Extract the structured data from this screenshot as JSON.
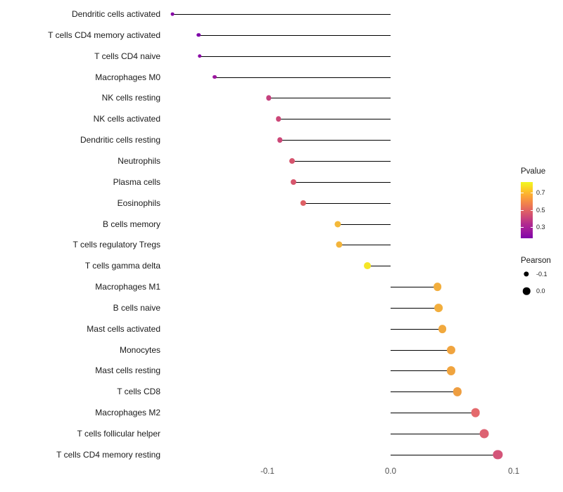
{
  "chart_data": {
    "type": "lollipop",
    "title": "",
    "xlabel": "",
    "ylabel": "",
    "x_ticks": [
      "-0.1",
      "0.0",
      "0.1"
    ],
    "x_tick_values": [
      -0.1,
      0,
      0.1
    ],
    "xlim": [
      -0.19,
      0.12
    ],
    "grid": false,
    "legend_position": "right",
    "points": [
      {
        "label": "Dendritic cells activated",
        "pearson": -0.177,
        "pvalue": 0.25,
        "color": "#8606a6"
      },
      {
        "label": "T cells CD4 memory activated",
        "pearson": -0.156,
        "pvalue": 0.24,
        "color": "#7e03a8"
      },
      {
        "label": "T cells CD4 naive",
        "pearson": -0.155,
        "pvalue": 0.25,
        "color": "#8a09a5"
      },
      {
        "label": "Macrophages M0",
        "pearson": -0.143,
        "pvalue": 0.28,
        "color": "#9c179e"
      },
      {
        "label": "NK cells resting",
        "pearson": -0.099,
        "pvalue": 0.44,
        "color": "#c5407e"
      },
      {
        "label": "NK cells activated",
        "pearson": -0.091,
        "pvalue": 0.46,
        "color": "#cc4778"
      },
      {
        "label": "Dendritic cells resting",
        "pearson": -0.09,
        "pvalue": 0.46,
        "color": "#cc4778"
      },
      {
        "label": "Neutrophils",
        "pearson": -0.08,
        "pvalue": 0.49,
        "color": "#d6556e"
      },
      {
        "label": "Plasma cells",
        "pearson": -0.079,
        "pvalue": 0.49,
        "color": "#d7566d"
      },
      {
        "label": "Eosinophils",
        "pearson": -0.071,
        "pvalue": 0.51,
        "color": "#de6065"
      },
      {
        "label": "B cells memory",
        "pearson": -0.043,
        "pvalue": 0.66,
        "color": "#f4b93a"
      },
      {
        "label": "T cells regulatory Tregs",
        "pearson": -0.042,
        "pvalue": 0.65,
        "color": "#f3b43b"
      },
      {
        "label": "T cells gamma delta",
        "pearson": -0.019,
        "pvalue": 0.78,
        "color": "#f5e626"
      },
      {
        "label": "Macrophages M1",
        "pearson": 0.038,
        "pvalue": 0.64,
        "color": "#f2ae3d"
      },
      {
        "label": "B cells naive",
        "pearson": 0.039,
        "pvalue": 0.64,
        "color": "#f2ae3d"
      },
      {
        "label": "Mast cells activated",
        "pearson": 0.042,
        "pvalue": 0.63,
        "color": "#f1a93e"
      },
      {
        "label": "Monocytes",
        "pearson": 0.049,
        "pvalue": 0.62,
        "color": "#f0a43f"
      },
      {
        "label": "Mast cells resting",
        "pearson": 0.049,
        "pvalue": 0.62,
        "color": "#f0a43f"
      },
      {
        "label": "T cells CD8",
        "pearson": 0.054,
        "pvalue": 0.6,
        "color": "#ee9e41"
      },
      {
        "label": "Macrophages M2",
        "pearson": 0.069,
        "pvalue": 0.52,
        "color": "#e4696c"
      },
      {
        "label": "T cells follicular helper",
        "pearson": 0.076,
        "pvalue": 0.5,
        "color": "#dd6272"
      },
      {
        "label": "T cells CD4 memory resting",
        "pearson": 0.087,
        "pvalue": 0.47,
        "color": "#d45579"
      }
    ],
    "legend": {
      "pvalue": {
        "title": "Pvalue",
        "ticks": [
          "0.7",
          "0.5",
          "0.3"
        ],
        "gradient_top_to_bottom": [
          "#f0f921",
          "#fcce25",
          "#fca636",
          "#f2844b",
          "#e16462",
          "#cc4778",
          "#b12a90",
          "#9c179e",
          "#7e03a8"
        ]
      },
      "pearson": {
        "title": "Pearson",
        "items": [
          {
            "label": "-0.1",
            "value": -0.1
          },
          {
            "label": "0.0",
            "value": 0
          }
        ],
        "dot_color": "#000000"
      }
    },
    "colors": {
      "stem": "#000000",
      "axis_text": "#4d4d4d",
      "category_text": "#1a1a1a",
      "background": "#ffffff"
    }
  }
}
